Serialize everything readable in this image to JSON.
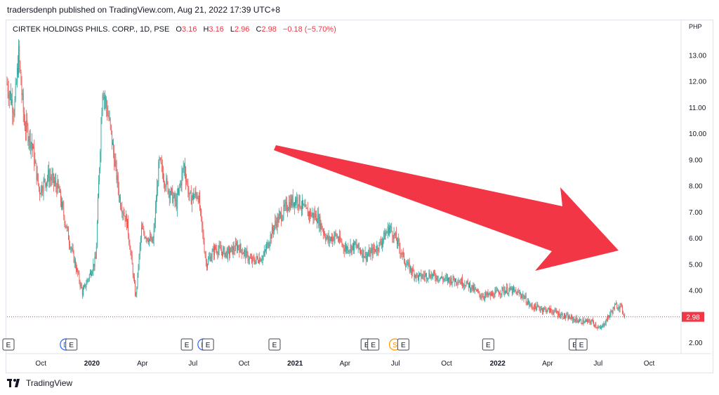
{
  "header": {
    "publisher": "tradersdenph published on TradingView.com, Aug 21, 2022 17:39 UTC+8"
  },
  "legend": {
    "symbol": "CIRTEK HOLDINGS PHILS. CORP., 1D, PSE",
    "open_label": "O",
    "open": "3.16",
    "high_label": "H",
    "high": "3.16",
    "low_label": "L",
    "low": "2.96",
    "close_label": "C",
    "close": "2.98",
    "change": "−0.18 (−5.70%)"
  },
  "price_axis": {
    "currency": "PHP"
  },
  "footer": {
    "brand": "TradingView"
  },
  "colors": {
    "up": "#26a69a",
    "down": "#ef5350",
    "arrow": "#f23645",
    "price_line": "#f23645",
    "last_price_bg": "#f23645"
  },
  "chart_data": {
    "type": "candlestick",
    "interval": "1D",
    "ylim": [
      1.6,
      14.3
    ],
    "y_ticks": [
      2.0,
      3.0,
      4.0,
      5.0,
      6.0,
      7.0,
      8.0,
      9.0,
      10.0,
      11.0,
      12.0,
      13.0
    ],
    "x_range": [
      "2019-08-01",
      "2022-11-25"
    ],
    "x_ticks": [
      {
        "date": "2019-10-01",
        "label": "Oct",
        "bold": false
      },
      {
        "date": "2020-01-01",
        "label": "2020",
        "bold": true
      },
      {
        "date": "2020-04-01",
        "label": "Apr",
        "bold": false
      },
      {
        "date": "2020-07-01",
        "label": "Jul",
        "bold": false
      },
      {
        "date": "2020-10-01",
        "label": "Oct",
        "bold": false
      },
      {
        "date": "2021-01-01",
        "label": "2021",
        "bold": true
      },
      {
        "date": "2021-04-01",
        "label": "Apr",
        "bold": false
      },
      {
        "date": "2021-07-01",
        "label": "Jul",
        "bold": false
      },
      {
        "date": "2021-10-01",
        "label": "Oct",
        "bold": false
      },
      {
        "date": "2022-01-01",
        "label": "2022",
        "bold": true
      },
      {
        "date": "2022-04-01",
        "label": "Apr",
        "bold": false
      },
      {
        "date": "2022-07-01",
        "label": "Jul",
        "bold": false
      },
      {
        "date": "2022-10-01",
        "label": "Oct",
        "bold": false
      }
    ],
    "last_price": 2.98,
    "last_price_label": "2.98",
    "path": [
      [
        "2019-08-01",
        11.9
      ],
      [
        "2019-08-14",
        10.9
      ],
      [
        "2019-08-22",
        13.0
      ],
      [
        "2019-09-01",
        10.4
      ],
      [
        "2019-09-15",
        9.6
      ],
      [
        "2019-09-28",
        7.8
      ],
      [
        "2019-10-15",
        8.4
      ],
      [
        "2019-11-01",
        7.9
      ],
      [
        "2019-11-20",
        6.0
      ],
      [
        "2019-12-15",
        3.9
      ],
      [
        "2020-01-08",
        5.2
      ],
      [
        "2020-01-20",
        11.8
      ],
      [
        "2020-02-01",
        10.5
      ],
      [
        "2020-02-20",
        7.5
      ],
      [
        "2020-03-05",
        6.5
      ],
      [
        "2020-03-20",
        3.7
      ],
      [
        "2020-03-30",
        6.3
      ],
      [
        "2020-04-20",
        5.8
      ],
      [
        "2020-05-01",
        8.9
      ],
      [
        "2020-05-15",
        8.0
      ],
      [
        "2020-06-01",
        7.3
      ],
      [
        "2020-06-15",
        8.8
      ],
      [
        "2020-06-25",
        7.5
      ],
      [
        "2020-07-10",
        7.7
      ],
      [
        "2020-07-25",
        5.0
      ],
      [
        "2020-08-10",
        5.6
      ],
      [
        "2020-09-01",
        5.4
      ],
      [
        "2020-09-20",
        5.7
      ],
      [
        "2020-10-15",
        5.1
      ],
      [
        "2020-11-05",
        5.3
      ],
      [
        "2020-11-25",
        6.5
      ],
      [
        "2020-12-20",
        7.3
      ],
      [
        "2021-01-05",
        7.5
      ],
      [
        "2021-01-20",
        7.0
      ],
      [
        "2021-02-10",
        6.8
      ],
      [
        "2021-03-01",
        5.9
      ],
      [
        "2021-03-15",
        6.1
      ],
      [
        "2021-04-01",
        5.6
      ],
      [
        "2021-04-20",
        5.7
      ],
      [
        "2021-05-10",
        5.3
      ],
      [
        "2021-06-01",
        5.7
      ],
      [
        "2021-06-20",
        6.4
      ],
      [
        "2021-07-01",
        6.0
      ],
      [
        "2021-07-20",
        5.0
      ],
      [
        "2021-08-10",
        4.5
      ],
      [
        "2021-09-01",
        4.6
      ],
      [
        "2021-10-01",
        4.4
      ],
      [
        "2021-10-20",
        4.4
      ],
      [
        "2021-11-10",
        4.2
      ],
      [
        "2021-12-01",
        3.8
      ],
      [
        "2021-12-20",
        3.8
      ],
      [
        "2022-01-10",
        4.0
      ],
      [
        "2022-01-25",
        4.0
      ],
      [
        "2022-02-15",
        3.8
      ],
      [
        "2022-03-01",
        3.4
      ],
      [
        "2022-03-20",
        3.3
      ],
      [
        "2022-04-10",
        3.2
      ],
      [
        "2022-05-01",
        3.0
      ],
      [
        "2022-06-01",
        2.8
      ],
      [
        "2022-06-20",
        2.8
      ],
      [
        "2022-07-05",
        2.5
      ],
      [
        "2022-07-20",
        3.0
      ],
      [
        "2022-08-01",
        3.4
      ],
      [
        "2022-08-10",
        3.4
      ],
      [
        "2022-08-19",
        2.98
      ]
    ],
    "event_markers": [
      {
        "date": "2019-08-01",
        "kind": "E"
      },
      {
        "date": "2019-11-15",
        "kind": "D"
      },
      {
        "date": "2019-11-25",
        "kind": "E"
      },
      {
        "date": "2020-06-20",
        "kind": "E"
      },
      {
        "date": "2020-07-20",
        "kind": "D"
      },
      {
        "date": "2020-07-28",
        "kind": "E"
      },
      {
        "date": "2020-11-25",
        "kind": "E"
      },
      {
        "date": "2021-05-10",
        "kind": "E"
      },
      {
        "date": "2021-05-22",
        "kind": "E"
      },
      {
        "date": "2021-06-30",
        "kind": "S"
      },
      {
        "date": "2021-07-15",
        "kind": "E"
      },
      {
        "date": "2021-12-15",
        "kind": "E"
      },
      {
        "date": "2022-05-20",
        "kind": "E"
      },
      {
        "date": "2022-06-01",
        "kind": "E"
      }
    ]
  }
}
